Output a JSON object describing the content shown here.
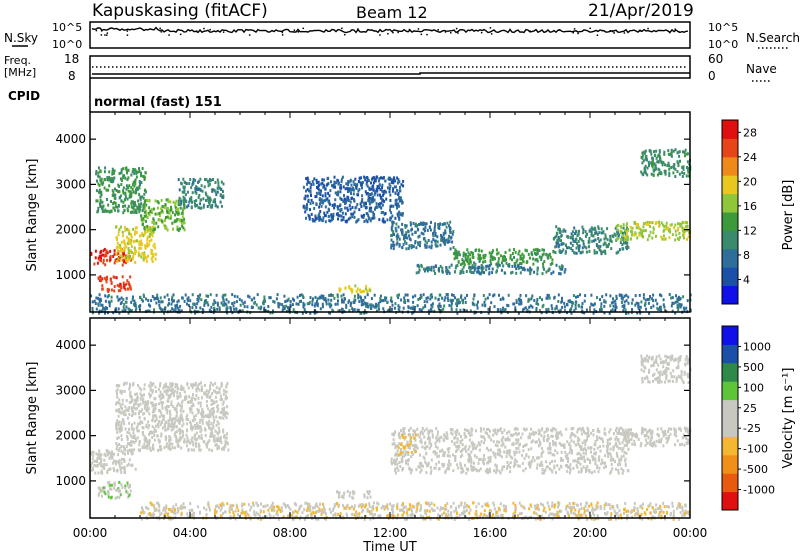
{
  "header": {
    "station": "Kapuskasing (fitACF)",
    "beam": "Beam 12",
    "date": "21/Apr/2019"
  },
  "noise_panel": {
    "left_label": "N.Sky",
    "right_label": "N.Search",
    "left_ticks": [
      "10^5",
      "10^0"
    ],
    "right_ticks": [
      "10^5",
      "10^0"
    ]
  },
  "freq_panel": {
    "left_label_line1": "Freq.",
    "left_label_line2": "[MHz]",
    "right_label": "Nave",
    "left_ticks": [
      "18",
      "8"
    ],
    "right_ticks": [
      "60",
      "0"
    ]
  },
  "cpid_panel": {
    "left_label": "CPID",
    "program": "normal (fast) 151"
  },
  "x_axis": {
    "label": "Time UT",
    "ticks": [
      "00:00",
      "04:00",
      "08:00",
      "12:00",
      "16:00",
      "20:00",
      "00:00"
    ]
  },
  "colors": {
    "power": [
      "#1010e8",
      "#1c4fa8",
      "#2f6d9a",
      "#3a8a6c",
      "#3d9a3a",
      "#8fc63a",
      "#e8c81e",
      "#ef8a1a",
      "#e8441a",
      "#e01010"
    ],
    "velocity": [
      "#e01010",
      "#e85a10",
      "#f09018",
      "#f4b830",
      "#c8c8c0",
      "#c8c8c0",
      "#5ec43a",
      "#2f8a4a",
      "#1c4fa8",
      "#1010e8"
    ]
  },
  "chart_data": [
    {
      "type": "heatmap",
      "title": "Power",
      "ylabel": "Slant Range [km]",
      "xlabel": "",
      "x_range_hours": [
        0,
        24
      ],
      "ylim": [
        180,
        4600
      ],
      "y_ticks": [
        "1000",
        "2000",
        "3000",
        "4000"
      ],
      "colorbar": {
        "label": "Power [dB]",
        "ticks": [
          "4",
          "8",
          "12",
          "16",
          "20",
          "24",
          "28"
        ],
        "range": [
          0,
          30
        ]
      },
      "regions": [
        {
          "t": [
            0.0,
            1.6
          ],
          "r": [
            1250,
            1600
          ],
          "v": 27
        },
        {
          "t": [
            0.3,
            1.6
          ],
          "r": [
            650,
            1000
          ],
          "v": 26
        },
        {
          "t": [
            1.0,
            2.6
          ],
          "r": [
            1300,
            2100
          ],
          "v": 19
        },
        {
          "t": [
            2.0,
            3.8
          ],
          "r": [
            2000,
            2700
          ],
          "v": 15
        },
        {
          "t": [
            3.5,
            5.3
          ],
          "r": [
            2500,
            3150
          ],
          "v": 10
        },
        {
          "t": [
            0.2,
            2.2
          ],
          "r": [
            2400,
            3400
          ],
          "v": 12
        },
        {
          "t": [
            9.8,
            11.2
          ],
          "r": [
            650,
            800
          ],
          "v": 19
        },
        {
          "t": [
            8.5,
            12.5
          ],
          "r": [
            2200,
            3200
          ],
          "v": 6
        },
        {
          "t": [
            12.0,
            14.5
          ],
          "r": [
            1600,
            2200
          ],
          "v": 8
        },
        {
          "t": [
            14.5,
            18.5
          ],
          "r": [
            1250,
            1600
          ],
          "v": 13
        },
        {
          "t": [
            18.5,
            21.5
          ],
          "r": [
            1500,
            2100
          ],
          "v": 10
        },
        {
          "t": [
            21.0,
            24.0
          ],
          "r": [
            1800,
            2200
          ],
          "v": 17
        },
        {
          "t": [
            22.0,
            24.0
          ],
          "r": [
            3200,
            3800
          ],
          "v": 11
        },
        {
          "t": [
            13.0,
            19.0
          ],
          "r": [
            1050,
            1250
          ],
          "v": 9
        },
        {
          "t": [
            0.0,
            24.0
          ],
          "r": [
            180,
            600
          ],
          "v": 8
        }
      ]
    },
    {
      "type": "heatmap",
      "title": "Velocity",
      "ylabel": "Slant Range [km]",
      "xlabel": "Time UT",
      "x_range_hours": [
        0,
        24
      ],
      "ylim": [
        180,
        4600
      ],
      "y_ticks": [
        "1000",
        "2000",
        "3000",
        "4000"
      ],
      "colorbar": {
        "label": "Velocity [m s⁻¹]",
        "ticks": [
          "1000",
          "500",
          "100",
          "25",
          "-25",
          "-100",
          "-500",
          "-1000"
        ],
        "range": [
          -1000,
          1000
        ]
      },
      "regions": [
        {
          "t": [
            0.0,
            1.8
          ],
          "r": [
            1200,
            1700
          ],
          "v": 0
        },
        {
          "t": [
            0.3,
            1.6
          ],
          "r": [
            650,
            1000
          ],
          "v": 120
        },
        {
          "t": [
            1.0,
            5.5
          ],
          "r": [
            1700,
            3200
          ],
          "v": 0
        },
        {
          "t": [
            9.8,
            11.2
          ],
          "r": [
            650,
            800
          ],
          "v": 0
        },
        {
          "t": [
            12.0,
            21.5
          ],
          "r": [
            1200,
            2200
          ],
          "v": 0
        },
        {
          "t": [
            12.3,
            13.0
          ],
          "r": [
            1600,
            2100
          ],
          "v": -200
        },
        {
          "t": [
            21.0,
            24.0
          ],
          "r": [
            1800,
            2200
          ],
          "v": 0
        },
        {
          "t": [
            22.0,
            24.0
          ],
          "r": [
            3200,
            3800
          ],
          "v": 0
        },
        {
          "t": [
            2.0,
            24.0
          ],
          "r": [
            180,
            550
          ],
          "v": -150
        }
      ]
    }
  ]
}
